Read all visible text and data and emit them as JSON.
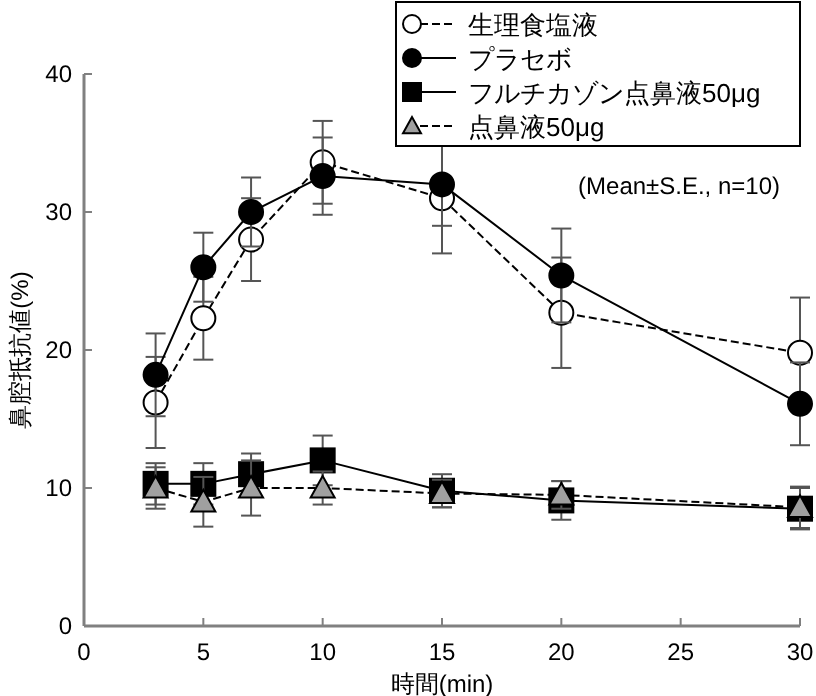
{
  "chart_data": {
    "type": "line",
    "xlabel": "時間(min)",
    "ylabel": "鼻腔抵抗値(%)",
    "x": [
      3,
      5,
      7,
      10,
      15,
      20,
      30
    ],
    "xlim": [
      0,
      30
    ],
    "xticks": [
      0,
      5,
      10,
      15,
      20,
      25,
      30
    ],
    "ylim": [
      0,
      40
    ],
    "yticks": [
      0,
      10,
      20,
      30,
      40
    ],
    "grid": false,
    "legend": "top right",
    "annotations": [
      "(Mean±S.E., n=10)"
    ],
    "series": [
      {
        "name": "生理食塩液",
        "color": "#ffffff",
        "marker": "circle",
        "line_style": "dashed",
        "values": [
          16.2,
          22.3,
          28,
          33.6,
          31,
          22.7,
          19.8
        ],
        "errors": [
          3.3,
          3,
          3,
          3,
          4,
          4,
          4
        ]
      },
      {
        "name": "プラセボ",
        "color": "#000000",
        "marker": "circle",
        "line_style": "solid",
        "values": [
          18.2,
          26,
          30,
          32.6,
          32,
          25.4,
          16.1
        ],
        "errors": [
          3,
          2.5,
          2.5,
          2.8,
          3,
          3.4,
          3
        ]
      },
      {
        "name": "フルチカゾン点鼻液50μg",
        "color": "#000000",
        "marker": "square",
        "line_style": "solid",
        "values": [
          10.3,
          10.3,
          11,
          12,
          9.8,
          9.1,
          8.5
        ],
        "errors": [
          1.5,
          1.5,
          1.5,
          1.8,
          1.2,
          1.4,
          1.5
        ]
      },
      {
        "name": "点鼻液50μg",
        "color": "#a0a0a0",
        "marker": "triangle",
        "line_style": "dashed",
        "values": [
          10,
          9,
          10,
          10,
          9.6,
          9.5,
          8.6
        ],
        "errors": [
          1.5,
          1.8,
          2,
          1.2,
          1,
          1,
          1.5
        ]
      }
    ]
  }
}
